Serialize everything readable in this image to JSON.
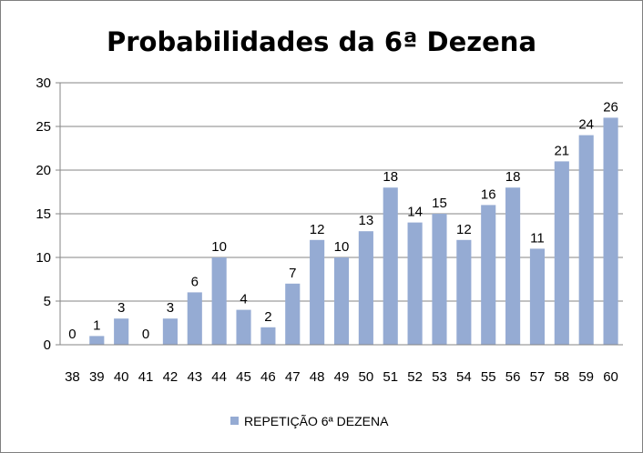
{
  "chart_data": {
    "type": "bar",
    "title": "Probabilidades da 6ª Dezena",
    "xlabel": "",
    "ylabel": "",
    "categories": [
      "38",
      "39",
      "40",
      "41",
      "42",
      "43",
      "44",
      "45",
      "46",
      "47",
      "48",
      "49",
      "50",
      "51",
      "52",
      "53",
      "54",
      "55",
      "56",
      "57",
      "58",
      "59",
      "60"
    ],
    "series": [
      {
        "name": "REPETIÇÃO 6ª DEZENA",
        "values": [
          0,
          1,
          3,
          0,
          3,
          6,
          10,
          4,
          2,
          7,
          12,
          10,
          13,
          18,
          14,
          15,
          12,
          16,
          18,
          11,
          21,
          24,
          26
        ],
        "color": "#95abd3"
      }
    ],
    "ylim": [
      0,
      30
    ],
    "yticks": [
      "0",
      "5",
      "10",
      "15",
      "20",
      "25",
      "30"
    ],
    "grid": true,
    "data_labels": true,
    "legend_position": "bottom",
    "gridline_color": "#868686",
    "axis_color": "#868686"
  }
}
